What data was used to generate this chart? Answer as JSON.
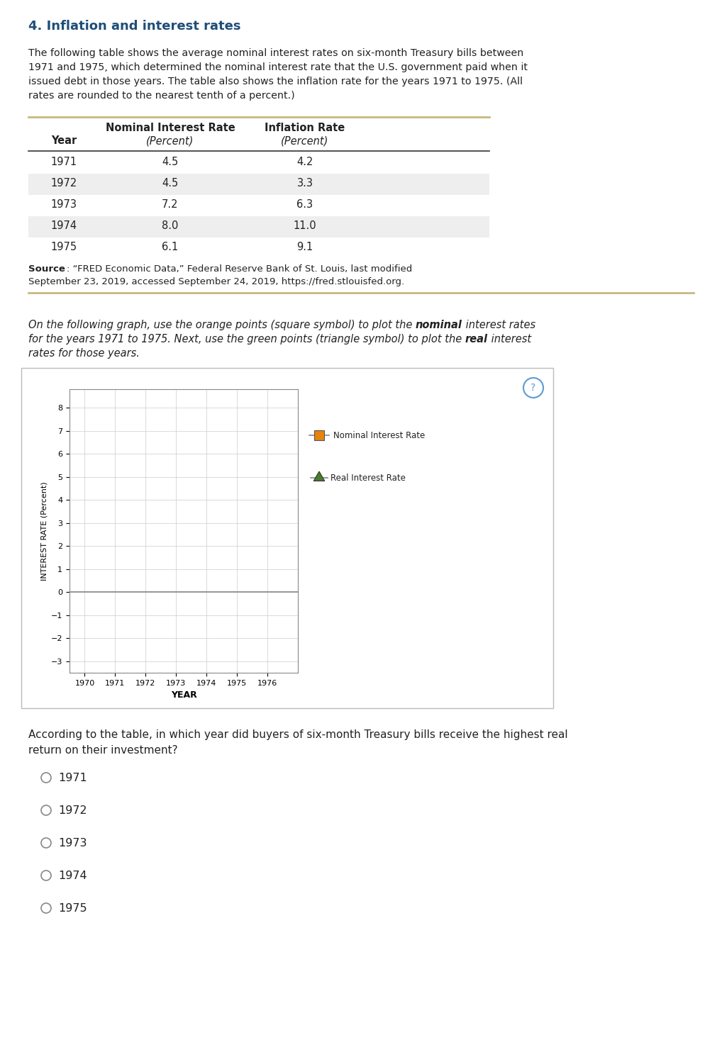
{
  "title": "4. Inflation and interest rates",
  "intro_text_lines": [
    "The following table shows the average nominal interest rates on six-month Treasury bills between",
    "1971 and 1975, which determined the nominal interest rate that the U.S. government paid when it",
    "issued debt in those years. The table also shows the inflation rate for the years 1971 to 1975. (All",
    "rates are rounded to the nearest tenth of a percent.)"
  ],
  "table": {
    "years": [
      1971,
      1972,
      1973,
      1974,
      1975
    ],
    "nominal_rates": [
      4.5,
      4.5,
      7.2,
      8.0,
      6.1
    ],
    "inflation_rates": [
      4.2,
      3.3,
      6.3,
      11.0,
      9.1
    ]
  },
  "graph": {
    "xlim": [
      1969.5,
      1977.0
    ],
    "ylim": [
      -3.5,
      8.8
    ],
    "xticks": [
      1970,
      1971,
      1972,
      1973,
      1974,
      1975,
      1976
    ],
    "yticks": [
      -3.0,
      -2.0,
      -1.0,
      0,
      1.0,
      2.0,
      3.0,
      4.0,
      5.0,
      6.0,
      7.0,
      8.0
    ],
    "xlabel": "YEAR",
    "ylabel": "INTEREST RATE (Percent)",
    "legend_nominal_label": "Nominal Interest Rate",
    "legend_real_label": "Real Interest Rate",
    "nominal_color": "#E8820C",
    "real_color": "#4A7C2F",
    "zero_line_color": "#999999"
  },
  "question_text_lines": [
    "According to the table, in which year did buyers of six-month Treasury bills receive the highest real",
    "return on their investment?"
  ],
  "radio_options": [
    "1971",
    "1972",
    "1973",
    "1974",
    "1975"
  ],
  "background_color": "#FFFFFF",
  "title_color": "#1F4E79",
  "table_row_bg_alt": "#EEEEEE",
  "gold_line_color": "#C8B880"
}
